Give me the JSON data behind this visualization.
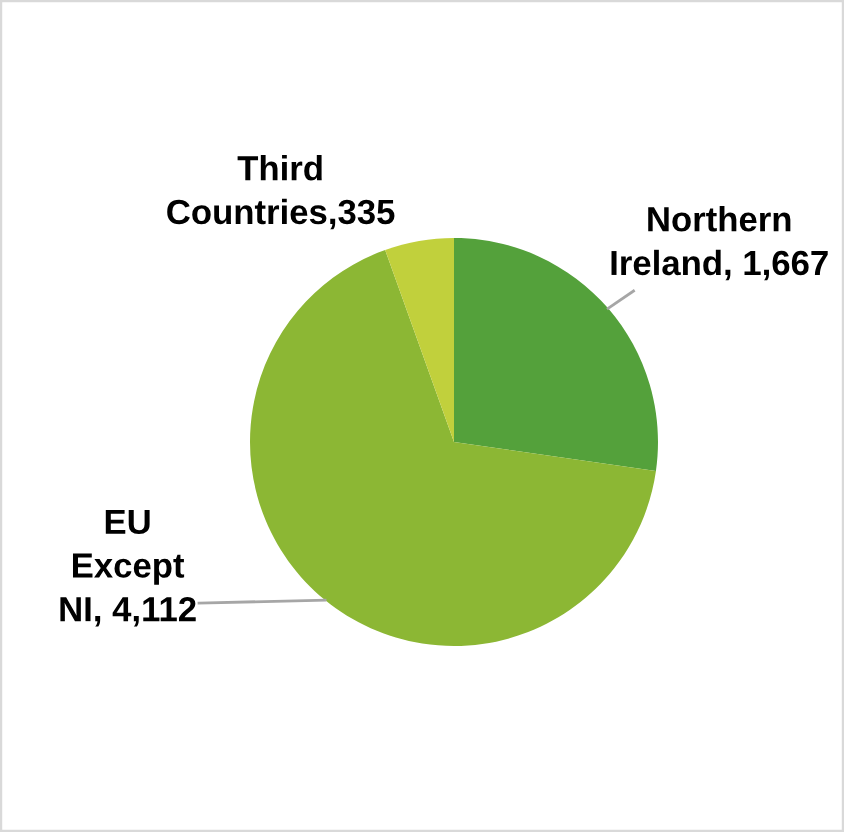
{
  "chart_data": {
    "type": "pie",
    "categories": [
      "Northern Ireland",
      "EU Except NI",
      "Third Countries"
    ],
    "values": [
      1667,
      4112,
      335
    ],
    "colors": [
      "#54a13b",
      "#8cb734",
      "#c1d03c"
    ],
    "value_labels": [
      "1,667",
      "4,112",
      "335"
    ]
  }
}
